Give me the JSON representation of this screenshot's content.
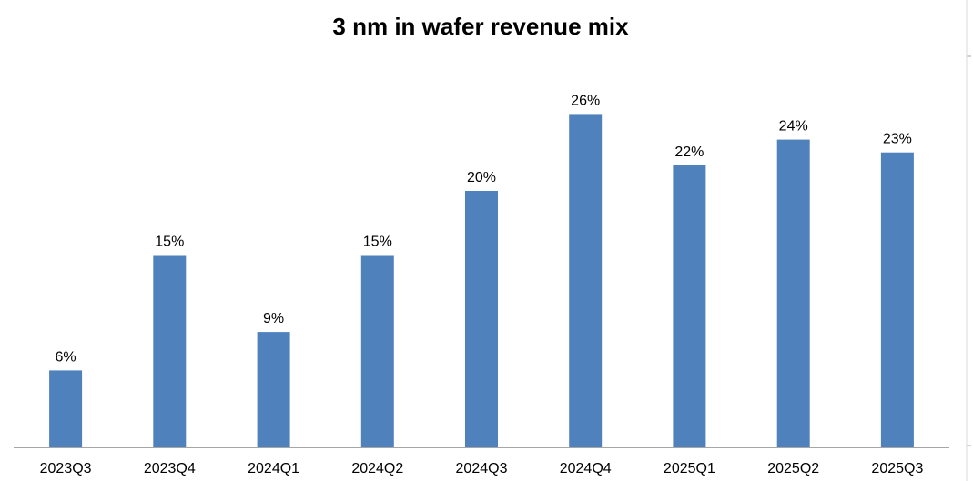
{
  "chart_data": {
    "type": "bar",
    "title": "3 nm in wafer revenue mix",
    "xlabel": "",
    "ylabel": "",
    "categories": [
      "2023Q3",
      "2023Q4",
      "2024Q1",
      "2024Q2",
      "2024Q3",
      "2024Q4",
      "2025Q1",
      "2025Q2",
      "2025Q3"
    ],
    "values": [
      6,
      15,
      9,
      15,
      20,
      26,
      22,
      24,
      23
    ],
    "data_labels": [
      "6%",
      "15%",
      "9%",
      "15%",
      "20%",
      "26%",
      "22%",
      "24%",
      "23%"
    ],
    "value_unit": "%",
    "ylim": [
      0,
      30
    ],
    "grid": false,
    "legend": "none",
    "colors": {
      "bar": "#4f81bd",
      "axis": "#a6a6a6",
      "text": "#000000"
    }
  }
}
